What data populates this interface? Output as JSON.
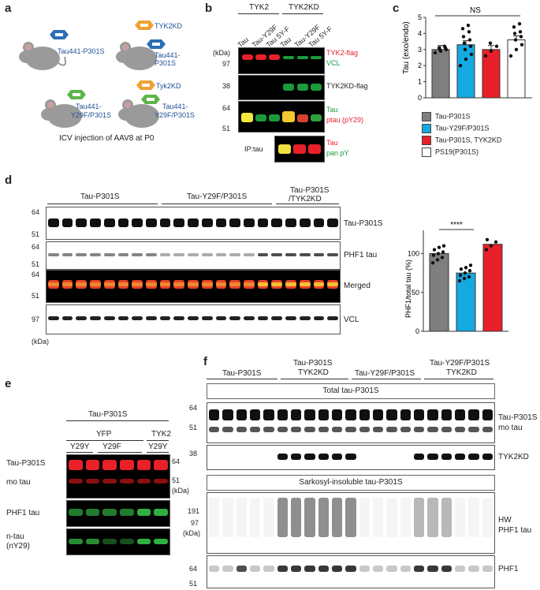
{
  "panels": {
    "a": "a",
    "b": "b",
    "c": "c",
    "d": "d",
    "e": "e",
    "f": "f"
  },
  "panel_a": {
    "mouse1_label": "Tau441-P301S",
    "mouse2_top": "TYK2KD",
    "mouse2_bottom": "Tau441-P301S",
    "mouse3_line1": "Tau441-",
    "mouse3_line2": "Y29F/P301S",
    "mouse4_top": "Tyk2KD",
    "mouse4_line1": "Tau441-",
    "mouse4_line2": "Y29F/P301S",
    "caption": "ICV injection of AAV8 at P0"
  },
  "panel_b": {
    "group1": "TYK2",
    "group2": "TYK2KD",
    "lanes": [
      "Tau",
      "Tau-Y29F",
      "Tau 5Y-F",
      "Tau",
      "Tau-Y29F",
      "Tau 5Y-F"
    ],
    "kda": "(kDa)",
    "mw1": "97",
    "mw2": "38",
    "mw3": "64",
    "mw4": "51",
    "lab1a": "TYK2-flag",
    "lab1b": "VCL",
    "lab2": "TYK2KD-flag",
    "lab3a": "Tau",
    "lab3b": "ptau (pY29)",
    "ip": "IP:tau",
    "lab4a": "Tau",
    "lab4b": "pan pY",
    "red": "#e8202a",
    "green": "#1a9a3a"
  },
  "panel_c": {
    "ylabel": "Tau (exo/endo)",
    "yticks": [
      "0",
      "1",
      "2",
      "3",
      "4",
      "5"
    ],
    "ns": "NS",
    "legend": [
      "Tau-P301S",
      "Tau-Y29F/P301S",
      "Tau-P301S, TYK2KD",
      "PS19(P301S)"
    ],
    "colors": [
      "#7f7f7f",
      "#14a9e1",
      "#e8202a",
      "#ffffff"
    ]
  },
  "chart_data": {
    "type": "bar",
    "categories": [
      "Tau-P301S",
      "Tau-Y29F/P301S",
      "Tau-P301S, TYK2KD",
      "PS19(P301S)"
    ],
    "values": [
      3.0,
      3.3,
      3.0,
      3.6
    ],
    "points": [
      [
        2.8,
        2.9,
        3.0,
        3.0,
        3.1,
        3.1,
        3.2
      ],
      [
        2.0,
        2.4,
        2.7,
        3.0,
        3.2,
        3.4,
        3.6,
        3.8,
        4.1,
        4.3,
        4.5
      ],
      [
        2.6,
        2.9,
        3.2,
        3.4
      ],
      [
        2.6,
        3.0,
        3.3,
        3.6,
        3.8,
        4.0,
        4.1,
        4.4,
        4.6
      ]
    ],
    "ylabel": "Tau (exo/endo)",
    "ylim": [
      0,
      5
    ],
    "annotation": "NS"
  },
  "panel_d": {
    "groups": [
      "Tau-P301S",
      "Tau-Y29F/P301S",
      "Tau-P301S",
      "/TYK2KD"
    ],
    "mw64": "64",
    "mw51": "51",
    "mw97": "97",
    "kda": "(kDa)",
    "rows": [
      "Tau-P301S",
      "PHF1 tau",
      "Merged",
      "VCL"
    ],
    "chart_ylabel": "PHF1/total tau (%)",
    "chart_yticks": [
      "0",
      "50",
      "100"
    ],
    "sig": "****",
    "bar_values": [
      100,
      75,
      112
    ],
    "bar_colors": [
      "#7f7f7f",
      "#14a9e1",
      "#e8202a"
    ]
  },
  "panel_e": {
    "header": "Tau-P301S",
    "sub1": "YFP",
    "sub2": "TYK2",
    "lanes": [
      "Y29Y",
      "Y29F",
      "Y29Y"
    ],
    "rows": [
      "Tau-P301S",
      "mo tau",
      "PHF1 tau",
      "n-tau",
      "(nY29)"
    ],
    "mw64": "64",
    "mw51": "51",
    "kda": "(kDa)"
  },
  "panel_f": {
    "groups": [
      "Tau-P301S",
      "Tau-P301S",
      "TYK2KD",
      "Tau-Y29F/P301S",
      "Tau-Y29F/P301S",
      "TYK2KD"
    ],
    "box1": "Total tau-P301S",
    "box2": "Sarkosyl-insoluble tau-P301S",
    "mw64": "64",
    "mw51": "51",
    "mw38": "38",
    "mw191": "191",
    "mw97": "97",
    "kda": "(kDa)",
    "row1a": "Tau-P301S",
    "row1b": "mo tau",
    "row2": "TYK2KD",
    "row3a": "HW",
    "row3b": "PHF1 tau",
    "row4": "PHF1"
  }
}
